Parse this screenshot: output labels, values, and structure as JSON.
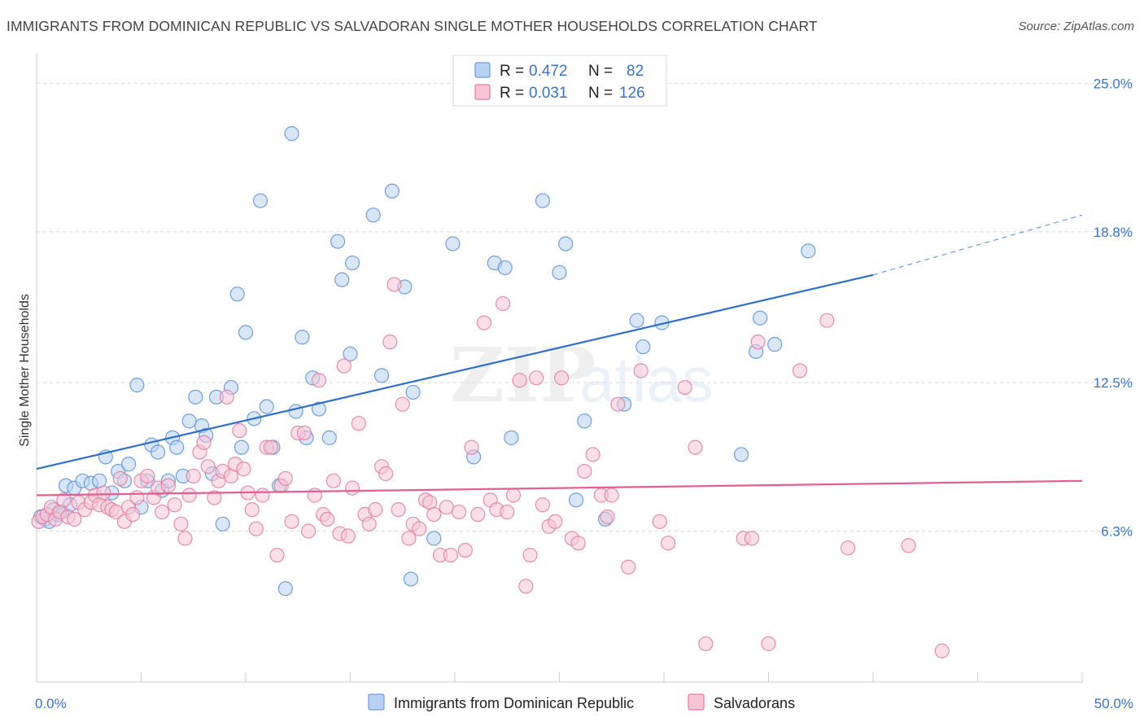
{
  "title": "IMMIGRANTS FROM DOMINICAN REPUBLIC VS SALVADORAN SINGLE MOTHER HOUSEHOLDS CORRELATION CHART",
  "source": "Source: ZipAtlas.com",
  "watermark": {
    "zip": "ZIP",
    "atlas": "atlas"
  },
  "legend_top": [
    {
      "r_label": "R =",
      "r_value": "0.472",
      "n_label": "N =",
      "n_value": "82",
      "color": "#6a9ee0",
      "fill": "#b8d1f3"
    },
    {
      "r_label": "R =",
      "r_value": "0.031",
      "n_label": "N =",
      "n_value": "126",
      "color": "#e07aa0",
      "fill": "#f7c5d6"
    }
  ],
  "chart_data": {
    "type": "scatter",
    "title": "IMMIGRANTS FROM DOMINICAN REPUBLIC VS SALVADORAN SINGLE MOTHER HOUSEHOLDS CORRELATION CHART",
    "xlabel": "",
    "ylabel": "Single Mother Households",
    "xlim": [
      0,
      50
    ],
    "ylim": [
      0,
      26.1
    ],
    "x_tick_labels": [
      "0.0%",
      "50.0%"
    ],
    "y_ticks": [
      6.3,
      12.5,
      18.8,
      25.0
    ],
    "y_tick_labels": [
      "6.3%",
      "12.5%",
      "18.8%",
      "25.0%"
    ],
    "grid": true,
    "legend_position": "top-center",
    "series": [
      {
        "name": "Immigrants from Dominican Republic",
        "color": "#5b8fd6",
        "fill": "#b8d1f3",
        "trend": {
          "x": [
            0,
            40
          ],
          "y": [
            8.9,
            17.0
          ],
          "extend_to": [
            50,
            19.5
          ],
          "color": "#2f6fc9"
        },
        "points": [
          [
            0.2,
            6.9
          ],
          [
            0.4,
            6.8
          ],
          [
            0.6,
            6.7
          ],
          [
            0.8,
            7.2
          ],
          [
            1.0,
            7.0
          ],
          [
            1.2,
            7.1
          ],
          [
            1.4,
            8.2
          ],
          [
            1.6,
            7.4
          ],
          [
            1.8,
            8.1
          ],
          [
            2.2,
            8.4
          ],
          [
            2.6,
            8.3
          ],
          [
            3.0,
            8.4
          ],
          [
            3.3,
            9.4
          ],
          [
            3.6,
            7.9
          ],
          [
            3.9,
            8.8
          ],
          [
            4.2,
            8.4
          ],
          [
            4.4,
            9.1
          ],
          [
            4.8,
            12.4
          ],
          [
            5.0,
            7.3
          ],
          [
            5.3,
            8.4
          ],
          [
            5.5,
            9.9
          ],
          [
            5.8,
            9.6
          ],
          [
            6.0,
            8.0
          ],
          [
            6.3,
            8.4
          ],
          [
            6.5,
            10.2
          ],
          [
            6.7,
            9.8
          ],
          [
            7.0,
            8.6
          ],
          [
            7.3,
            10.9
          ],
          [
            7.6,
            11.9
          ],
          [
            7.9,
            10.7
          ],
          [
            8.1,
            10.3
          ],
          [
            8.4,
            8.7
          ],
          [
            8.6,
            11.9
          ],
          [
            8.9,
            6.6
          ],
          [
            9.3,
            12.3
          ],
          [
            9.6,
            16.2
          ],
          [
            9.8,
            9.8
          ],
          [
            10.0,
            14.6
          ],
          [
            10.4,
            11.0
          ],
          [
            10.7,
            20.1
          ],
          [
            11.0,
            11.5
          ],
          [
            11.3,
            9.8
          ],
          [
            11.6,
            8.2
          ],
          [
            11.9,
            3.9
          ],
          [
            12.2,
            22.9
          ],
          [
            12.4,
            11.3
          ],
          [
            12.7,
            14.4
          ],
          [
            12.9,
            10.2
          ],
          [
            13.2,
            12.7
          ],
          [
            13.5,
            11.4
          ],
          [
            14.0,
            10.2
          ],
          [
            14.4,
            18.4
          ],
          [
            14.6,
            16.8
          ],
          [
            15.0,
            13.7
          ],
          [
            15.1,
            17.5
          ],
          [
            16.1,
            19.5
          ],
          [
            16.5,
            12.8
          ],
          [
            17.0,
            20.5
          ],
          [
            17.6,
            16.5
          ],
          [
            17.9,
            4.3
          ],
          [
            18.0,
            12.1
          ],
          [
            19.0,
            6.0
          ],
          [
            19.9,
            18.3
          ],
          [
            20.9,
            9.4
          ],
          [
            21.9,
            17.5
          ],
          [
            22.4,
            17.3
          ],
          [
            22.7,
            10.2
          ],
          [
            24.2,
            20.1
          ],
          [
            25.0,
            17.1
          ],
          [
            25.3,
            18.3
          ],
          [
            25.8,
            7.6
          ],
          [
            26.2,
            10.9
          ],
          [
            27.2,
            6.8
          ],
          [
            28.1,
            11.6
          ],
          [
            28.7,
            15.1
          ],
          [
            29.0,
            14.0
          ],
          [
            29.9,
            15.0
          ],
          [
            33.7,
            9.5
          ],
          [
            34.4,
            13.8
          ],
          [
            34.6,
            15.2
          ],
          [
            35.3,
            14.1
          ],
          [
            36.9,
            18.0
          ]
        ]
      },
      {
        "name": "Salvadorans",
        "color": "#e07aa0",
        "fill": "#f7c5d6",
        "trend": {
          "x": [
            0,
            50
          ],
          "y": [
            7.8,
            8.4
          ],
          "color": "#e0608f"
        },
        "points": [
          [
            0.1,
            6.7
          ],
          [
            0.3,
            6.9
          ],
          [
            0.5,
            7.0
          ],
          [
            0.7,
            7.3
          ],
          [
            0.9,
            6.8
          ],
          [
            1.1,
            7.1
          ],
          [
            1.3,
            7.6
          ],
          [
            1.5,
            6.9
          ],
          [
            1.8,
            6.8
          ],
          [
            2.0,
            7.5
          ],
          [
            2.3,
            7.2
          ],
          [
            2.6,
            7.5
          ],
          [
            2.8,
            7.8
          ],
          [
            3.0,
            7.4
          ],
          [
            3.2,
            7.9
          ],
          [
            3.4,
            7.3
          ],
          [
            3.6,
            7.2
          ],
          [
            3.8,
            7.1
          ],
          [
            4.0,
            8.5
          ],
          [
            4.2,
            6.7
          ],
          [
            4.4,
            7.3
          ],
          [
            4.6,
            7.0
          ],
          [
            4.8,
            7.7
          ],
          [
            5.0,
            8.4
          ],
          [
            5.3,
            8.6
          ],
          [
            5.6,
            7.7
          ],
          [
            5.8,
            8.1
          ],
          [
            6.0,
            7.1
          ],
          [
            6.3,
            8.2
          ],
          [
            6.6,
            7.4
          ],
          [
            6.9,
            6.6
          ],
          [
            7.1,
            6.0
          ],
          [
            7.3,
            7.8
          ],
          [
            7.5,
            8.6
          ],
          [
            7.8,
            9.6
          ],
          [
            8.0,
            10.0
          ],
          [
            8.2,
            9.0
          ],
          [
            8.5,
            7.7
          ],
          [
            8.7,
            8.4
          ],
          [
            8.9,
            8.8
          ],
          [
            9.1,
            11.9
          ],
          [
            9.3,
            8.6
          ],
          [
            9.5,
            9.1
          ],
          [
            9.7,
            10.5
          ],
          [
            9.9,
            8.9
          ],
          [
            10.1,
            7.9
          ],
          [
            10.3,
            7.2
          ],
          [
            10.5,
            6.4
          ],
          [
            10.8,
            7.8
          ],
          [
            11.0,
            9.8
          ],
          [
            11.2,
            9.8
          ],
          [
            11.5,
            5.3
          ],
          [
            11.7,
            8.2
          ],
          [
            11.9,
            8.5
          ],
          [
            12.2,
            6.7
          ],
          [
            12.5,
            10.4
          ],
          [
            12.8,
            10.4
          ],
          [
            13.0,
            6.3
          ],
          [
            13.3,
            7.8
          ],
          [
            13.5,
            12.6
          ],
          [
            13.7,
            7.0
          ],
          [
            13.9,
            6.8
          ],
          [
            14.2,
            8.4
          ],
          [
            14.5,
            6.2
          ],
          [
            14.7,
            13.2
          ],
          [
            14.9,
            6.1
          ],
          [
            15.1,
            8.1
          ],
          [
            15.4,
            10.8
          ],
          [
            15.7,
            7.0
          ],
          [
            15.9,
            6.6
          ],
          [
            16.2,
            7.2
          ],
          [
            16.5,
            9.0
          ],
          [
            16.7,
            8.7
          ],
          [
            16.9,
            14.2
          ],
          [
            17.1,
            16.6
          ],
          [
            17.3,
            7.2
          ],
          [
            17.5,
            11.6
          ],
          [
            17.8,
            6.0
          ],
          [
            18.0,
            6.6
          ],
          [
            18.3,
            6.4
          ],
          [
            18.6,
            7.6
          ],
          [
            18.8,
            7.5
          ],
          [
            19.0,
            7.0
          ],
          [
            19.3,
            5.3
          ],
          [
            19.6,
            7.3
          ],
          [
            19.8,
            5.3
          ],
          [
            20.2,
            7.1
          ],
          [
            20.5,
            5.5
          ],
          [
            20.8,
            9.8
          ],
          [
            21.1,
            7.0
          ],
          [
            21.4,
            15.0
          ],
          [
            21.7,
            7.6
          ],
          [
            22.0,
            7.2
          ],
          [
            22.3,
            15.8
          ],
          [
            22.5,
            7.1
          ],
          [
            22.8,
            7.8
          ],
          [
            23.1,
            12.6
          ],
          [
            23.4,
            4.0
          ],
          [
            23.6,
            5.3
          ],
          [
            23.9,
            12.7
          ],
          [
            24.2,
            7.4
          ],
          [
            24.5,
            6.5
          ],
          [
            24.8,
            6.7
          ],
          [
            25.1,
            12.7
          ],
          [
            25.6,
            6.0
          ],
          [
            25.9,
            5.8
          ],
          [
            26.2,
            8.8
          ],
          [
            26.6,
            9.5
          ],
          [
            27.0,
            7.8
          ],
          [
            27.3,
            6.9
          ],
          [
            27.5,
            7.8
          ],
          [
            27.8,
            11.6
          ],
          [
            28.3,
            4.8
          ],
          [
            28.9,
            13.0
          ],
          [
            29.8,
            6.7
          ],
          [
            30.2,
            5.8
          ],
          [
            31.0,
            12.3
          ],
          [
            31.5,
            9.8
          ],
          [
            32.0,
            1.6
          ],
          [
            33.8,
            6.0
          ],
          [
            34.2,
            6.0
          ],
          [
            34.5,
            14.2
          ],
          [
            35.0,
            1.6
          ],
          [
            36.5,
            13.0
          ],
          [
            37.8,
            15.1
          ],
          [
            38.8,
            5.6
          ],
          [
            41.7,
            5.7
          ],
          [
            43.3,
            1.3
          ]
        ]
      }
    ]
  }
}
